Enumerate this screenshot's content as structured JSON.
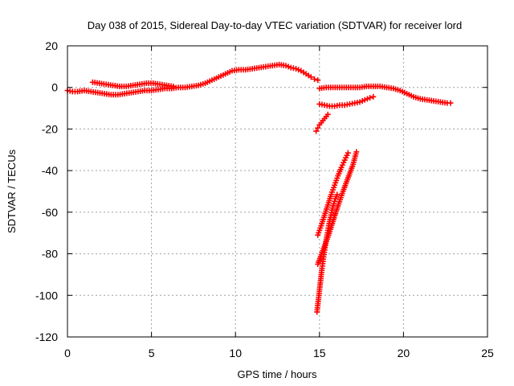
{
  "chart_data": {
    "type": "scatter",
    "title": "Day 038 of 2015, Sidereal Day-to-day VTEC variation (SDTVAR) for receiver lord",
    "xlabel": "GPS time / hours",
    "ylabel": "SDTVAR / TECUs",
    "xlim": [
      0,
      25
    ],
    "ylim": [
      -120,
      20
    ],
    "xticks": [
      "0",
      "5",
      "10",
      "15",
      "20",
      "25"
    ],
    "yticks": [
      "20",
      "0",
      "-20",
      "-40",
      "-60",
      "-80",
      "-100",
      "-120"
    ],
    "grid": true,
    "marker": "plus",
    "color": "#ff0000",
    "series": [
      {
        "x": [
          0.0,
          0.3,
          0.6,
          1.0,
          1.4,
          1.8,
          2.2,
          2.6,
          3.0,
          3.4,
          3.8,
          4.2,
          4.6,
          5.0,
          5.4,
          5.8,
          6.2,
          6.6,
          7.0,
          7.4,
          7.8,
          8.2,
          8.6,
          9.0,
          9.4,
          9.8,
          10.2,
          10.6,
          11.0,
          11.4,
          11.8,
          12.2,
          12.6,
          13.0,
          13.3,
          13.6,
          13.9,
          14.2,
          14.5,
          14.7,
          14.9
        ],
        "y": [
          -1.5,
          -2.0,
          -2.0,
          -1.5,
          -2.0,
          -2.5,
          -3.0,
          -3.5,
          -3.5,
          -3.0,
          -2.5,
          -2.0,
          -1.5,
          -1.5,
          -1.0,
          -0.5,
          -0.5,
          0.0,
          0.0,
          0.5,
          1.0,
          2.0,
          3.5,
          5.0,
          6.5,
          8.0,
          8.5,
          8.5,
          9.0,
          9.5,
          10.0,
          10.5,
          11.0,
          10.5,
          9.5,
          9.0,
          8.0,
          6.5,
          5.0,
          4.0,
          3.5
        ]
      },
      {
        "x": [
          1.5,
          1.9,
          2.3,
          2.7,
          3.1,
          3.5,
          3.9,
          4.3,
          4.7,
          5.1,
          5.5,
          5.9,
          6.3
        ],
        "y": [
          2.5,
          2.0,
          1.5,
          1.0,
          0.5,
          0.5,
          1.0,
          1.5,
          2.0,
          2.0,
          1.5,
          1.0,
          0.5
        ]
      },
      {
        "x": [
          15.0,
          15.4,
          15.8,
          16.2,
          16.6,
          17.0,
          17.4,
          17.8,
          18.2,
          18.6,
          19.0,
          19.4,
          19.8,
          20.2,
          20.6,
          21.0,
          21.4,
          21.8,
          22.2,
          22.6,
          22.8
        ],
        "y": [
          -0.5,
          0.0,
          0.0,
          0.0,
          0.0,
          0.0,
          0.0,
          0.5,
          0.5,
          0.5,
          0.0,
          -0.5,
          -1.5,
          -3.0,
          -4.5,
          -5.5,
          -6.0,
          -6.5,
          -7.0,
          -7.5,
          -7.5
        ]
      },
      {
        "x": [
          15.0,
          15.3,
          15.6,
          15.9,
          16.2,
          16.5,
          16.8,
          17.1,
          17.4,
          17.7,
          18.0,
          18.2
        ],
        "y": [
          -8.0,
          -8.5,
          -9.0,
          -9.0,
          -8.5,
          -8.5,
          -8.0,
          -7.5,
          -7.0,
          -6.0,
          -5.0,
          -4.5
        ]
      },
      {
        "x": [
          14.8,
          14.9,
          15.0,
          15.1,
          15.2,
          15.3,
          15.4,
          15.5
        ],
        "y": [
          -21.0,
          -19.5,
          -18.0,
          -17.0,
          -16.0,
          -15.0,
          -14.0,
          -13.0
        ]
      },
      {
        "x": [
          14.9,
          15.1,
          15.3,
          15.5,
          15.7,
          15.9,
          16.1,
          16.3,
          16.5,
          16.7
        ],
        "y": [
          -71.0,
          -66.5,
          -61.5,
          -56.5,
          -51.5,
          -47.0,
          -42.5,
          -38.5,
          -35.0,
          -31.5
        ]
      },
      {
        "x": [
          14.9,
          15.2,
          15.5,
          15.8,
          16.1,
          16.4,
          16.7,
          17.0,
          17.2
        ],
        "y": [
          -85.0,
          -78.5,
          -72.0,
          -64.5,
          -57.0,
          -50.0,
          -43.5,
          -37.0,
          -31.0
        ]
      },
      {
        "x": [
          14.85,
          14.95,
          15.05,
          15.15,
          15.25,
          15.35,
          15.45,
          15.55,
          15.65,
          15.75,
          15.85,
          15.95,
          16.05
        ],
        "y": [
          -108.0,
          -101.0,
          -94.0,
          -87.0,
          -81.5,
          -76.0,
          -71.0,
          -66.5,
          -62.5,
          -59.0,
          -56.0,
          -53.5,
          -51.5
        ]
      }
    ]
  }
}
